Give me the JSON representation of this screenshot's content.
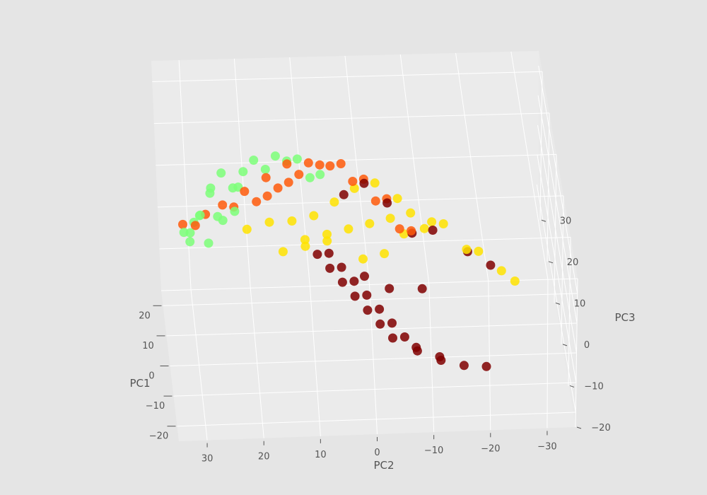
{
  "chart_data": {
    "type": "scatter",
    "projection": "3d",
    "title": "",
    "xlabel": "PC1",
    "ylabel": "PC2",
    "zlabel": "PC3",
    "xlim": [
      -25,
      25
    ],
    "ylim": [
      -35,
      35
    ],
    "zlim": [
      -20,
      35
    ],
    "x_ticks": [
      -20,
      -10,
      0,
      10,
      20
    ],
    "y_ticks": [
      -30,
      -20,
      -10,
      0,
      10,
      20,
      30
    ],
    "z_ticks": [
      -20,
      -10,
      0,
      10,
      20,
      30
    ],
    "x_tick_labels": [
      "−20",
      "−10",
      "0",
      "10",
      "20"
    ],
    "y_tick_labels": [
      "−30",
      "−20",
      "−10",
      "0",
      "10",
      "20",
      "30"
    ],
    "z_tick_labels": [
      "−20",
      "−10",
      "0",
      "10",
      "20",
      "30"
    ],
    "grid": true,
    "legend": "none",
    "background_color": "#e5e5e5",
    "pane_color": "#ebebeb",
    "grid_color": "#ffffff",
    "series": [
      {
        "color": "#7cff79",
        "points": [
          [
            15,
            28,
            5
          ],
          [
            12,
            30,
            3
          ],
          [
            18,
            26,
            8
          ],
          [
            20,
            24,
            0
          ],
          [
            14,
            22,
            12
          ],
          [
            10,
            26,
            15
          ],
          [
            16,
            30,
            -2
          ],
          [
            8,
            24,
            20
          ],
          [
            5,
            18,
            25
          ],
          [
            2,
            14,
            28
          ],
          [
            -2,
            10,
            30
          ],
          [
            -6,
            6,
            29
          ],
          [
            19,
            28,
            2
          ],
          [
            13,
            25,
            6
          ],
          [
            17,
            21,
            10
          ],
          [
            11,
            20,
            18
          ],
          [
            6,
            16,
            22
          ],
          [
            9,
            22,
            10
          ],
          [
            3,
            12,
            26
          ],
          [
            0,
            8,
            24
          ],
          [
            21,
            29,
            -1
          ],
          [
            15,
            31,
            1
          ],
          [
            7,
            27,
            4
          ]
        ]
      },
      {
        "color": "#ff5a0a",
        "points": [
          [
            14,
            24,
            8
          ],
          [
            10,
            20,
            14
          ],
          [
            6,
            16,
            20
          ],
          [
            2,
            12,
            26
          ],
          [
            -2,
            8,
            29
          ],
          [
            -6,
            4,
            31
          ],
          [
            -10,
            0,
            30
          ],
          [
            -14,
            -4,
            28
          ],
          [
            -18,
            -8,
            24
          ],
          [
            18,
            27,
            3
          ],
          [
            16,
            22,
            6
          ],
          [
            12,
            18,
            10
          ],
          [
            8,
            14,
            16
          ],
          [
            4,
            10,
            22
          ],
          [
            0,
            6,
            27
          ],
          [
            -4,
            2,
            30
          ],
          [
            -8,
            -2,
            29
          ],
          [
            -12,
            -6,
            27
          ],
          [
            -16,
            -10,
            22
          ],
          [
            19,
            31,
            0
          ],
          [
            13,
            29,
            4
          ],
          [
            11,
            16,
            12
          ],
          [
            7,
            12,
            18
          ]
        ]
      },
      {
        "color": "#ffe300",
        "points": [
          [
            12,
            16,
            5
          ],
          [
            8,
            12,
            8
          ],
          [
            4,
            8,
            12
          ],
          [
            0,
            4,
            18
          ],
          [
            -4,
            0,
            24
          ],
          [
            -8,
            -4,
            28
          ],
          [
            -12,
            -8,
            27
          ],
          [
            -16,
            -14,
            24
          ],
          [
            -20,
            -20,
            20
          ],
          [
            -22,
            -26,
            16
          ],
          [
            10,
            10,
            2
          ],
          [
            6,
            6,
            6
          ],
          [
            2,
            2,
            10
          ],
          [
            -2,
            -2,
            14
          ],
          [
            -6,
            -6,
            18
          ],
          [
            -10,
            -10,
            22
          ],
          [
            -14,
            -16,
            22
          ],
          [
            -18,
            -22,
            18
          ],
          [
            14,
            20,
            2
          ],
          [
            9,
            14,
            0
          ],
          [
            5,
            10,
            4
          ],
          [
            1,
            6,
            8
          ],
          [
            -3,
            -8,
            12
          ],
          [
            -7,
            -12,
            16
          ],
          [
            -20,
            -28,
            12
          ],
          [
            3,
            0,
            2
          ],
          [
            -1,
            -4,
            6
          ]
        ]
      },
      {
        "color": "#800000",
        "points": [
          [
            6,
            4,
            -2
          ],
          [
            4,
            2,
            -4
          ],
          [
            2,
            0,
            -6
          ],
          [
            0,
            -2,
            -8
          ],
          [
            -2,
            -4,
            -10
          ],
          [
            -4,
            -6,
            -12
          ],
          [
            -6,
            -8,
            -14
          ],
          [
            -8,
            -12,
            -15
          ],
          [
            -10,
            -16,
            -15
          ],
          [
            -12,
            -20,
            -14
          ],
          [
            8,
            6,
            0
          ],
          [
            5,
            8,
            2
          ],
          [
            3,
            6,
            0
          ],
          [
            1,
            4,
            -2
          ],
          [
            -1,
            2,
            -4
          ],
          [
            -3,
            0,
            -6
          ],
          [
            -5,
            -2,
            -8
          ],
          [
            -7,
            -4,
            -10
          ],
          [
            -9,
            -8,
            -11
          ],
          [
            -11,
            -12,
            -12
          ],
          [
            -14,
            -10,
            20
          ],
          [
            -16,
            -14,
            22
          ],
          [
            -12,
            -6,
            26
          ],
          [
            -8,
            -2,
            28
          ],
          [
            -18,
            -20,
            18
          ],
          [
            -20,
            -24,
            16
          ],
          [
            -6,
            2,
            24
          ],
          [
            0,
            0,
            0
          ],
          [
            -2,
            -10,
            -2
          ],
          [
            4,
            -4,
            -6
          ]
        ]
      }
    ]
  }
}
